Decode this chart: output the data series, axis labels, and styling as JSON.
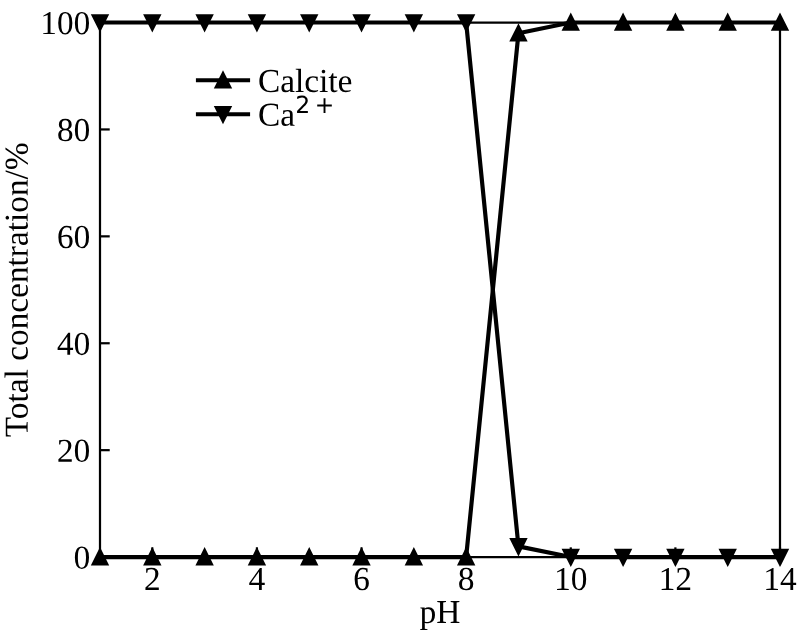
{
  "chart_data": {
    "type": "line",
    "xlabel": "pH",
    "ylabel": "Total concentration/%",
    "x": [
      1,
      2,
      3,
      4,
      5,
      6,
      7,
      8,
      9,
      10,
      11,
      12,
      13,
      14
    ],
    "series": [
      {
        "name": "Calcite",
        "color": "#000000",
        "values": [
          0,
          0,
          0,
          0,
          0,
          0,
          0,
          0,
          98,
          100,
          100,
          100,
          100,
          100
        ]
      },
      {
        "name": "Ca$^{2+}$",
        "color": "#000000",
        "values": [
          100,
          100,
          100,
          100,
          100,
          100,
          100,
          100,
          2,
          0,
          0,
          0,
          0,
          0
        ]
      }
    ],
    "xlim": [
      1,
      14
    ],
    "xticks": [
      2,
      4,
      6,
      8,
      10,
      12,
      14
    ],
    "ylim": [
      0,
      100
    ],
    "yticks": [
      0,
      20,
      40,
      60,
      80,
      100
    ],
    "marker": "triangle",
    "line_style": "solid",
    "legend": "top left",
    "grid": false
  }
}
